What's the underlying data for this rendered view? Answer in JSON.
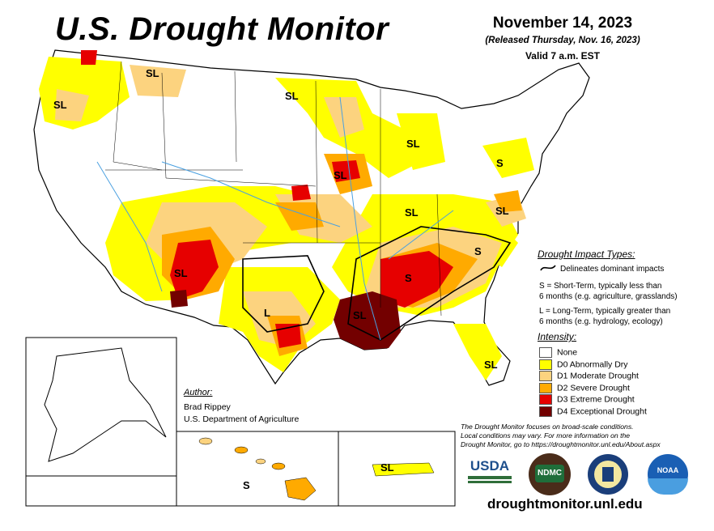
{
  "title": "U.S. Drought Monitor",
  "date": "November 14, 2023",
  "released": "(Released Thursday, Nov. 16, 2023)",
  "valid": "Valid 7 a.m. EST",
  "impact": {
    "heading": "Drought Impact Types:",
    "delineates": "Delineates dominant impacts",
    "short_term": "S = Short-Term, typically less than",
    "short_term_2": "6 months (e.g. agriculture, grasslands)",
    "long_term": "L = Long-Term, typically greater than",
    "long_term_2": "6 months (e.g. hydrology, ecology)"
  },
  "intensity": {
    "heading": "Intensity:",
    "levels": [
      {
        "label": "None",
        "color": "#ffffff"
      },
      {
        "label": "D0 Abnormally Dry",
        "color": "#ffff00"
      },
      {
        "label": "D1 Moderate Drought",
        "color": "#fcd37f"
      },
      {
        "label": "D2 Severe Drought",
        "color": "#ffaa00"
      },
      {
        "label": "D3 Extreme Drought",
        "color": "#e60000"
      },
      {
        "label": "D4 Exceptional Drought",
        "color": "#730000"
      }
    ]
  },
  "author": {
    "label": "Author:",
    "name": "Brad Rippey",
    "org": "U.S. Department of Agriculture"
  },
  "note": {
    "line1": "The Drought Monitor focuses on broad-scale conditions.",
    "line2": "Local conditions may vary. For more information on the",
    "line3": "Drought Monitor, go to https://droughtmonitor.unl.edu/About.aspx"
  },
  "url": "droughtmonitor.unl.edu",
  "map_labels": {
    "sl": "SL",
    "s": "S",
    "l": "L"
  },
  "logos": {
    "usda": "USDA",
    "ndmc": "NDMC",
    "noaa": "NOAA"
  }
}
